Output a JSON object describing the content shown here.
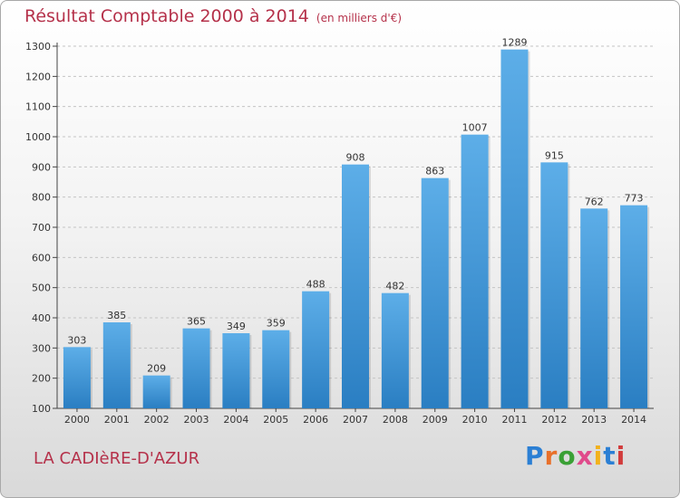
{
  "title": "Résultat Comptable 2000 à 2014",
  "unit": "(en milliers d'€)",
  "location": "LA CADIèRE-D'AZUR",
  "logo": "Proxiti",
  "colors": {
    "bar_top": "#5daee8",
    "bar_bottom": "#2a7ec2",
    "title": "#b5314a"
  },
  "chart_data": {
    "type": "bar",
    "categories": [
      "2000",
      "2001",
      "2002",
      "2003",
      "2004",
      "2005",
      "2006",
      "2007",
      "2008",
      "2009",
      "2010",
      "2011",
      "2012",
      "2013",
      "2014"
    ],
    "values": [
      303,
      385,
      209,
      365,
      349,
      359,
      488,
      908,
      482,
      863,
      1007,
      1289,
      915,
      762,
      773
    ],
    "ylim": [
      100,
      1300
    ],
    "yticks": [
      100,
      200,
      300,
      400,
      500,
      600,
      700,
      800,
      900,
      1000,
      1100,
      1200,
      1300
    ],
    "grid": true
  }
}
